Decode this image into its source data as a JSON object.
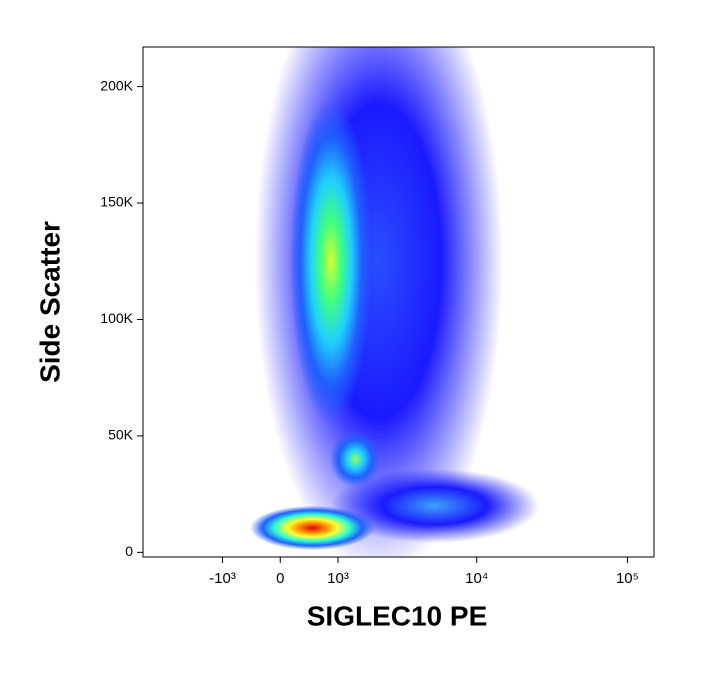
{
  "chart_data": {
    "type": "density",
    "x_label": "SIGLEC10 PE",
    "y_label": "Side Scatter",
    "x_scale": "asinh",
    "x_asinh_width": 1000,
    "xlim": [
      -4000,
      150000
    ],
    "xticks": [
      {
        "value": -1000,
        "label": "-10³"
      },
      0,
      {
        "value": 1000,
        "label": "10³"
      },
      {
        "value": 10000,
        "label": "10⁴"
      },
      {
        "value": 100000,
        "label": "10⁵"
      }
    ],
    "ylim": [
      -2000,
      217000
    ],
    "yticks": [
      0,
      {
        "value": 50000,
        "label": "50K"
      },
      {
        "value": 100000,
        "label": "100K"
      },
      {
        "value": 150000,
        "label": "150K"
      },
      {
        "value": 200000,
        "label": "200K"
      }
    ],
    "populations": [
      {
        "x_range": [
          -400,
          15000
        ],
        "y_range": [
          -10000,
          260000
        ],
        "colors": [
          "#2a4dff",
          "#1a1aff"
        ]
      },
      {
        "x_range": [
          840,
          26000
        ],
        "y_range": [
          4000,
          36000
        ],
        "colors": [
          "#3fa0ff",
          "#1a1aff"
        ]
      },
      {
        "x_range": [
          150,
          1900
        ],
        "y_range": [
          55000,
          195000
        ],
        "colors": [
          "#d8ff30",
          "#40ff80",
          "#20d0ff",
          "#2060ff"
        ]
      },
      {
        "x_range": [
          840,
          2200
        ],
        "y_range": [
          28000,
          52000
        ],
        "colors": [
          "#90ff60",
          "#20d0ff",
          "#2060ff"
        ]
      },
      {
        "x_range": [
          -475,
          2000
        ],
        "y_range": [
          1000,
          20000
        ],
        "colors": [
          "#e00000",
          "#ff8000",
          "#ffff30",
          "#30ffd0",
          "#2060ff"
        ]
      }
    ]
  }
}
